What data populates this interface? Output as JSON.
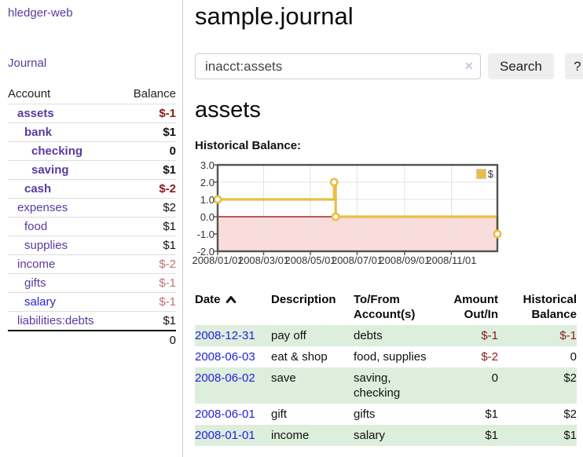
{
  "sidebar": {
    "app_title": "hledger-web",
    "journal_link": "Journal",
    "accounts_table": {
      "headers": [
        "Account",
        "Balance"
      ],
      "rows": [
        {
          "name": "assets",
          "balance": "$-1",
          "indent": 1,
          "bold": true,
          "balance_class": "neg"
        },
        {
          "name": "bank",
          "balance": "$1",
          "indent": 2,
          "bold": true,
          "balance_class": "pos"
        },
        {
          "name": "checking",
          "balance": "0",
          "indent": 3,
          "bold": true,
          "balance_class": "pos"
        },
        {
          "name": "saving",
          "balance": "$1",
          "indent": 3,
          "bold": true,
          "balance_class": "pos"
        },
        {
          "name": "cash",
          "balance": "$-2",
          "indent": 2,
          "bold": true,
          "balance_class": "neg"
        },
        {
          "name": "expenses",
          "balance": "$2",
          "indent": 1,
          "bold": false,
          "balance_class": "pos"
        },
        {
          "name": "food",
          "balance": "$1",
          "indent": 2,
          "bold": false,
          "balance_class": "pos"
        },
        {
          "name": "supplies",
          "balance": "$1",
          "indent": 2,
          "bold": false,
          "balance_class": "pos"
        },
        {
          "name": "income",
          "balance": "$-2",
          "indent": 1,
          "bold": false,
          "balance_class": "neglight"
        },
        {
          "name": "gifts",
          "balance": "$-1",
          "indent": 2,
          "bold": false,
          "balance_class": "neglight"
        },
        {
          "name": "salary",
          "balance": "$-1",
          "indent": 2,
          "bold": false,
          "balance_class": "neglight",
          "link_color": "blue"
        },
        {
          "name": "liabilities:debts",
          "balance": "$1",
          "indent": 1,
          "bold": false,
          "balance_class": "pos"
        }
      ],
      "total": "0"
    }
  },
  "header": {
    "title": "sample.journal"
  },
  "search": {
    "value": "inacct:assets",
    "clear_icon": "×",
    "button_label": "Search",
    "help_label": "?"
  },
  "account_page": {
    "title": "assets",
    "chart_label": "Historical Balance:"
  },
  "chart_data": {
    "type": "line",
    "step": true,
    "title": "Historical Balance:",
    "series": [
      {
        "name": "$",
        "points": [
          {
            "date": "2008-01-01",
            "value": 1
          },
          {
            "date": "2008-06-01",
            "value": 2
          },
          {
            "date": "2008-06-03",
            "value": 0
          },
          {
            "date": "2008-12-31",
            "value": -1
          }
        ]
      }
    ],
    "x_range": [
      "2008-01-01",
      "2008-12-31"
    ],
    "ylim": [
      -2,
      3
    ],
    "y_ticks": [
      "3.0",
      "2.0",
      "1.0",
      "0.0",
      "-1.0",
      "-2.0"
    ],
    "x_ticks": [
      "2008/01/01",
      "2008/03/01",
      "2008/05/01",
      "2008/07/01",
      "2008/09/01",
      "2008/11/01"
    ],
    "legend": {
      "label": "$",
      "position": "top-right"
    },
    "grid": true,
    "negative_region_shaded": true
  },
  "register_table": {
    "headers": [
      {
        "line1": "Date",
        "line2": "",
        "sort": "asc"
      },
      {
        "line1": "Description",
        "line2": ""
      },
      {
        "line1": "To/From",
        "line2": "Account(s)"
      },
      {
        "line1": "Amount",
        "line2": "Out/In"
      },
      {
        "line1": "Historical",
        "line2": "Balance"
      }
    ],
    "rows": [
      {
        "date": "2008-12-31",
        "description": "pay off",
        "accounts": "debts",
        "amount": "$-1",
        "balance": "$-1",
        "amount_negative": true,
        "balance_negative": true
      },
      {
        "date": "2008-06-03",
        "description": "eat & shop",
        "accounts": "food, supplies",
        "amount": "$-2",
        "balance": "0",
        "amount_negative": true,
        "balance_negative": false
      },
      {
        "date": "2008-06-02",
        "description": "save",
        "accounts": "saving, checking",
        "amount": "0",
        "balance": "$2",
        "amount_negative": false,
        "balance_negative": false
      },
      {
        "date": "2008-06-01",
        "description": "gift",
        "accounts": "gifts",
        "amount": "$1",
        "balance": "$2",
        "amount_negative": false,
        "balance_negative": false
      },
      {
        "date": "2008-01-01",
        "description": "income",
        "accounts": "salary",
        "amount": "$1",
        "balance": "$1",
        "amount_negative": false,
        "balance_negative": false
      }
    ]
  },
  "colors": {
    "accent_purple": "#5b3a9e",
    "link_blue": "#2222dd",
    "negative_red": "#8b1a1a",
    "negative_light_red": "#bf7272",
    "row_green": "#ddeedd",
    "chart_line_gold": "#e8bf45",
    "chart_negative_fill": "#fbdcdc",
    "chart_zero_line": "#8b0000",
    "chart_border": "#545454"
  }
}
